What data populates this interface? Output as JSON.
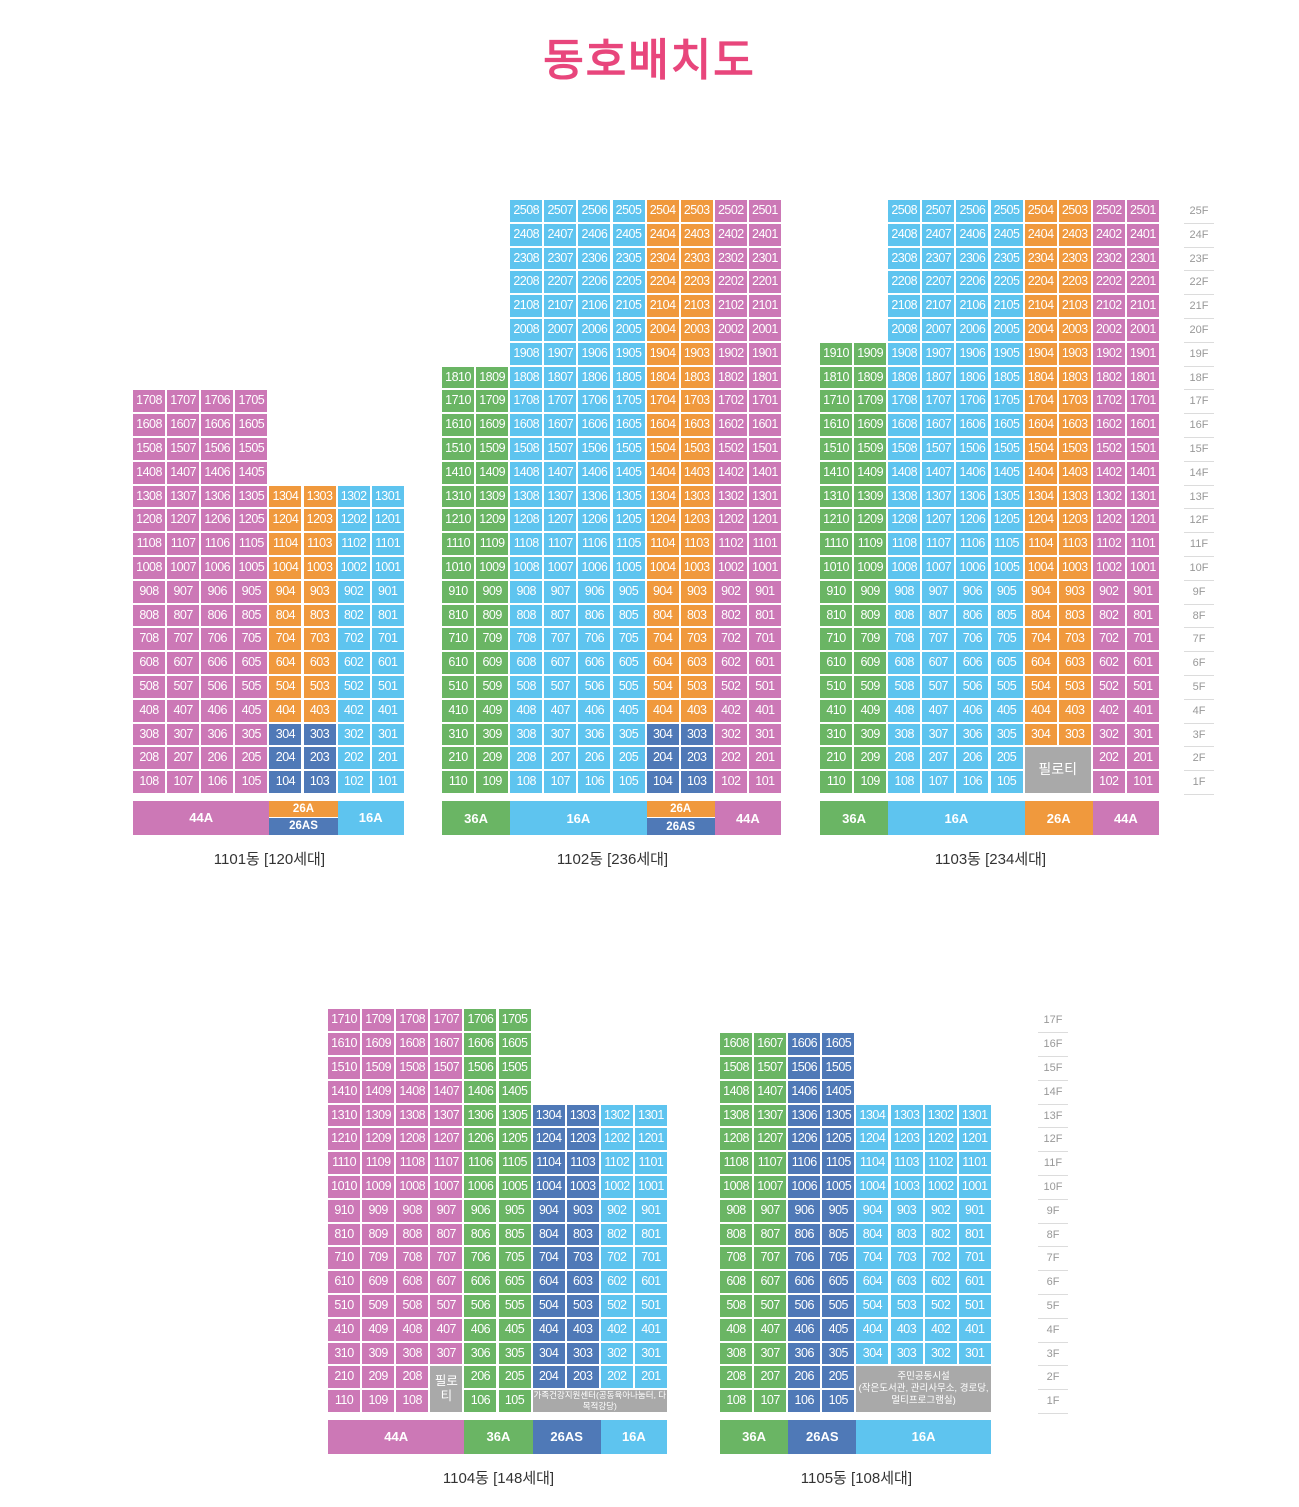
{
  "title": "동호배치도",
  "colors": {
    "44A": "#cc78b6",
    "36A": "#6ab564",
    "16A": "#5ec4ef",
    "26A": "#f0993d",
    "26AS": "#4f79b7",
    "special": "#a9a9a9"
  },
  "floor_labels_upper": [
    "25F",
    "24F",
    "23F",
    "22F",
    "21F",
    "20F",
    "19F",
    "18F",
    "17F",
    "16F",
    "15F",
    "14F",
    "13F",
    "12F",
    "11F",
    "10F",
    "9F",
    "8F",
    "7F",
    "6F",
    "5F",
    "4F",
    "3F",
    "2F",
    "1F"
  ],
  "floor_labels_lower": [
    "17F",
    "16F",
    "15F",
    "14F",
    "13F",
    "12F",
    "11F",
    "10F",
    "9F",
    "8F",
    "7F",
    "6F",
    "5F",
    "4F",
    "3F",
    "2F",
    "1F"
  ],
  "buildings": [
    {
      "caption": "1101동 [120세대]",
      "line_numbers": [
        "08",
        "07",
        "06",
        "05",
        "04",
        "03",
        "02",
        "01"
      ],
      "columns": [
        {
          "line": "08",
          "top": 17,
          "bottom": 1,
          "type": "44A"
        },
        {
          "line": "07",
          "top": 17,
          "bottom": 1,
          "type": "44A"
        },
        {
          "line": "06",
          "top": 17,
          "bottom": 1,
          "type": "44A"
        },
        {
          "line": "05",
          "top": 17,
          "bottom": 1,
          "type": "44A"
        },
        {
          "line": "04",
          "top": 13,
          "bottom": 1,
          "type": "26A",
          "overrides": {
            "1": "26AS",
            "2": "26AS",
            "3": "26AS"
          }
        },
        {
          "line": "03",
          "top": 13,
          "bottom": 1,
          "type": "26A",
          "overrides": {
            "1": "26AS",
            "2": "26AS",
            "3": "26AS"
          }
        },
        {
          "line": "02",
          "top": 13,
          "bottom": 1,
          "type": "16A"
        },
        {
          "line": "01",
          "top": 13,
          "bottom": 1,
          "type": "16A"
        }
      ],
      "specials": [],
      "type_bar": [
        {
          "label": "44A",
          "type": "44A",
          "span": 4
        },
        {
          "label": "26A",
          "type": "26A",
          "span": 2,
          "half": "top"
        },
        {
          "label": "26AS",
          "type": "26AS",
          "span": 2,
          "half": "bottom"
        },
        {
          "label": "16A",
          "type": "16A",
          "span": 2
        }
      ]
    },
    {
      "caption": "1102동 [236세대]",
      "line_numbers": [
        "10",
        "09",
        "08",
        "07",
        "06",
        "05",
        "04",
        "03",
        "02",
        "01"
      ],
      "columns": [
        {
          "line": "10",
          "top": 18,
          "bottom": 1,
          "type": "36A"
        },
        {
          "line": "09",
          "top": 18,
          "bottom": 1,
          "type": "36A"
        },
        {
          "line": "08",
          "top": 25,
          "bottom": 1,
          "type": "16A"
        },
        {
          "line": "07",
          "top": 25,
          "bottom": 1,
          "type": "16A"
        },
        {
          "line": "06",
          "top": 25,
          "bottom": 1,
          "type": "16A"
        },
        {
          "line": "05",
          "top": 25,
          "bottom": 1,
          "type": "16A"
        },
        {
          "line": "04",
          "top": 25,
          "bottom": 1,
          "type": "26A",
          "overrides": {
            "1": "26AS",
            "2": "26AS",
            "3": "26AS"
          }
        },
        {
          "line": "03",
          "top": 25,
          "bottom": 1,
          "type": "26A",
          "overrides": {
            "1": "26AS",
            "2": "26AS",
            "3": "26AS"
          }
        },
        {
          "line": "02",
          "top": 25,
          "bottom": 1,
          "type": "44A"
        },
        {
          "line": "01",
          "top": 25,
          "bottom": 1,
          "type": "44A"
        }
      ],
      "specials": [],
      "type_bar": [
        {
          "label": "36A",
          "type": "36A",
          "span": 2
        },
        {
          "label": "16A",
          "type": "16A",
          "span": 4
        },
        {
          "label": "26A",
          "type": "26A",
          "span": 2,
          "half": "top"
        },
        {
          "label": "26AS",
          "type": "26AS",
          "span": 2,
          "half": "bottom"
        },
        {
          "label": "44A",
          "type": "44A",
          "span": 2
        }
      ]
    },
    {
      "caption": "1103동 [234세대]",
      "line_numbers": [
        "10",
        "09",
        "08",
        "07",
        "06",
        "05",
        "04",
        "03",
        "02",
        "01"
      ],
      "columns": [
        {
          "line": "10",
          "top": 19,
          "bottom": 1,
          "type": "36A"
        },
        {
          "line": "09",
          "top": 19,
          "bottom": 1,
          "type": "36A"
        },
        {
          "line": "08",
          "top": 25,
          "bottom": 1,
          "type": "16A"
        },
        {
          "line": "07",
          "top": 25,
          "bottom": 1,
          "type": "16A"
        },
        {
          "line": "06",
          "top": 25,
          "bottom": 1,
          "type": "16A"
        },
        {
          "line": "05",
          "top": 25,
          "bottom": 1,
          "type": "16A"
        },
        {
          "line": "04",
          "top": 25,
          "bottom": 3,
          "type": "26A"
        },
        {
          "line": "03",
          "top": 25,
          "bottom": 3,
          "type": "26A"
        },
        {
          "line": "02",
          "top": 25,
          "bottom": 1,
          "type": "44A"
        },
        {
          "line": "01",
          "top": 25,
          "bottom": 1,
          "type": "44A"
        }
      ],
      "specials": [
        {
          "text": "필로티",
          "col": 6,
          "span": 2,
          "top_floor": 2,
          "bottom_floor": 1,
          "font": 14
        }
      ],
      "type_bar": [
        {
          "label": "36A",
          "type": "36A",
          "span": 2
        },
        {
          "label": "16A",
          "type": "16A",
          "span": 4
        },
        {
          "label": "26A",
          "type": "26A",
          "span": 2
        },
        {
          "label": "44A",
          "type": "44A",
          "span": 2
        }
      ]
    },
    {
      "caption": "1104동 [148세대]",
      "line_numbers": [
        "10",
        "09",
        "08",
        "07",
        "06",
        "05",
        "04",
        "03",
        "02",
        "01"
      ],
      "columns": [
        {
          "line": "10",
          "top": 17,
          "bottom": 1,
          "type": "44A"
        },
        {
          "line": "09",
          "top": 17,
          "bottom": 1,
          "type": "44A"
        },
        {
          "line": "08",
          "top": 17,
          "bottom": 1,
          "type": "44A"
        },
        {
          "line": "07",
          "top": 17,
          "bottom": 3,
          "type": "44A"
        },
        {
          "line": "06",
          "top": 17,
          "bottom": 1,
          "type": "36A"
        },
        {
          "line": "05",
          "top": 17,
          "bottom": 1,
          "type": "36A"
        },
        {
          "line": "04",
          "top": 13,
          "bottom": 2,
          "type": "26AS"
        },
        {
          "line": "03",
          "top": 13,
          "bottom": 2,
          "type": "26AS"
        },
        {
          "line": "02",
          "top": 13,
          "bottom": 2,
          "type": "16A"
        },
        {
          "line": "01",
          "top": 13,
          "bottom": 2,
          "type": "16A"
        }
      ],
      "specials": [
        {
          "text": "필로티",
          "col": 3,
          "span": 1,
          "top_floor": 2,
          "bottom_floor": 1,
          "font": 12.5
        },
        {
          "text": "가족건강지원센터(공동육아나눔터, 다목적강당)",
          "col": 6,
          "span": 4,
          "top_floor": 1,
          "bottom_floor": 1,
          "font": 8.5
        }
      ],
      "type_bar": [
        {
          "label": "44A",
          "type": "44A",
          "span": 4
        },
        {
          "label": "36A",
          "type": "36A",
          "span": 2
        },
        {
          "label": "26AS",
          "type": "26AS",
          "span": 2
        },
        {
          "label": "16A",
          "type": "16A",
          "span": 2
        }
      ]
    },
    {
      "caption": "1105동 [108세대]",
      "line_numbers": [
        "08",
        "07",
        "06",
        "05",
        "04",
        "03",
        "02",
        "01"
      ],
      "columns": [
        {
          "line": "08",
          "top": 16,
          "bottom": 1,
          "type": "36A"
        },
        {
          "line": "07",
          "top": 16,
          "bottom": 1,
          "type": "36A"
        },
        {
          "line": "06",
          "top": 16,
          "bottom": 1,
          "type": "26AS"
        },
        {
          "line": "05",
          "top": 16,
          "bottom": 1,
          "type": "26AS"
        },
        {
          "line": "04",
          "top": 13,
          "bottom": 3,
          "type": "16A"
        },
        {
          "line": "03",
          "top": 13,
          "bottom": 3,
          "type": "16A"
        },
        {
          "line": "02",
          "top": 13,
          "bottom": 3,
          "type": "16A"
        },
        {
          "line": "01",
          "top": 13,
          "bottom": 3,
          "type": "16A"
        }
      ],
      "specials": [
        {
          "text": "주민공동시설\n(작은도서관, 관리사무소, 경로당,\n멀티프로그램실)",
          "col": 4,
          "span": 4,
          "top_floor": 2,
          "bottom_floor": 1,
          "font": 9.5
        }
      ],
      "type_bar": [
        {
          "label": "36A",
          "type": "36A",
          "span": 2
        },
        {
          "label": "26AS",
          "type": "26AS",
          "span": 2
        },
        {
          "label": "16A",
          "type": "16A",
          "span": 4
        }
      ]
    }
  ]
}
